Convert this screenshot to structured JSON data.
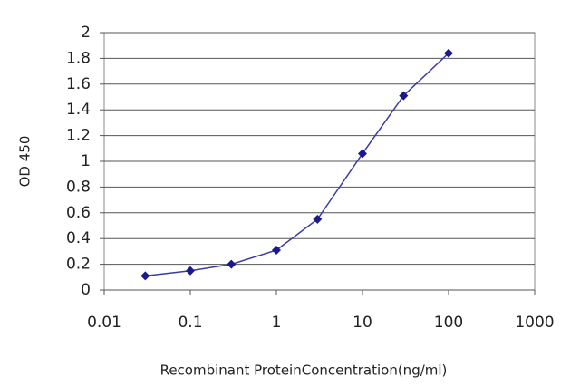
{
  "chart_data": {
    "type": "line",
    "x_label": "Recombinant ProteinConcentration(ng/ml)",
    "y_label": "OD 450",
    "x": [
      0.03,
      0.1,
      0.3,
      1,
      3,
      10,
      30,
      100
    ],
    "values": [
      0.11,
      0.15,
      0.2,
      0.31,
      0.55,
      1.06,
      1.51,
      1.84
    ],
    "color": "#3b3ba8",
    "marker_color": "#1a1a8c",
    "xscale": "log",
    "xlim": [
      0.01,
      1000
    ],
    "xticks": [
      0.01,
      0.1,
      1,
      10,
      100,
      1000
    ],
    "ylim": [
      0,
      2
    ],
    "yticks": [
      0,
      0.2,
      0.4,
      0.6,
      0.8,
      1,
      1.2,
      1.4,
      1.6,
      1.8,
      2
    ],
    "grid": true
  }
}
